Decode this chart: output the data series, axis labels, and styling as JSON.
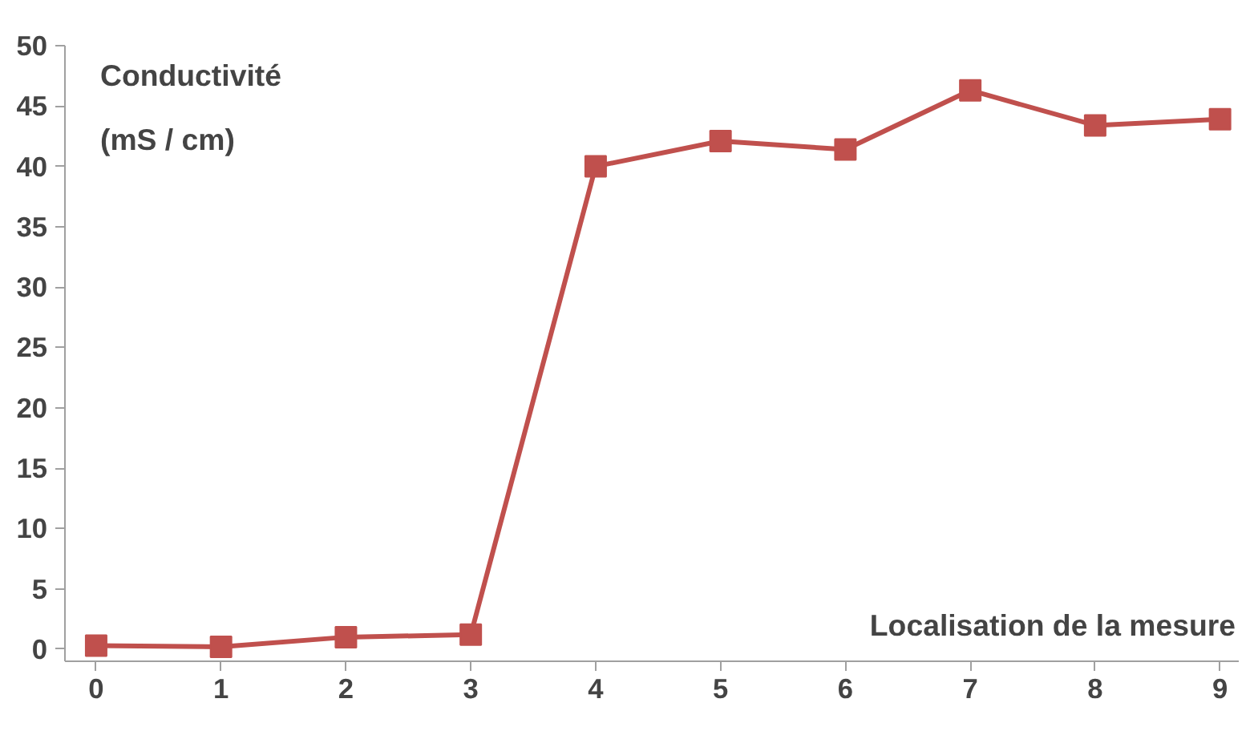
{
  "chart_data": {
    "type": "line",
    "xlabel": "Localisation de la mesure",
    "ylabel": "Conductivité\n(mS / cm)",
    "x": [
      0,
      1,
      2,
      3,
      4,
      5,
      6,
      7,
      8,
      9
    ],
    "series": [
      {
        "color": "#c0504d",
        "values": [
          0.3,
          0.2,
          1.0,
          1.2,
          40.0,
          42.1,
          41.4,
          46.3,
          43.4,
          43.9
        ]
      }
    ],
    "xlim": [
      -0.25,
      9.15
    ],
    "xticks": [
      0,
      1,
      2,
      3,
      4,
      5,
      6,
      7,
      8,
      9
    ],
    "ylim": [
      -1,
      50
    ],
    "yticks": [
      0,
      5,
      10,
      15,
      20,
      25,
      30,
      35,
      40,
      45,
      50
    ],
    "grid": false,
    "marker": "square",
    "line_style": "solid"
  }
}
